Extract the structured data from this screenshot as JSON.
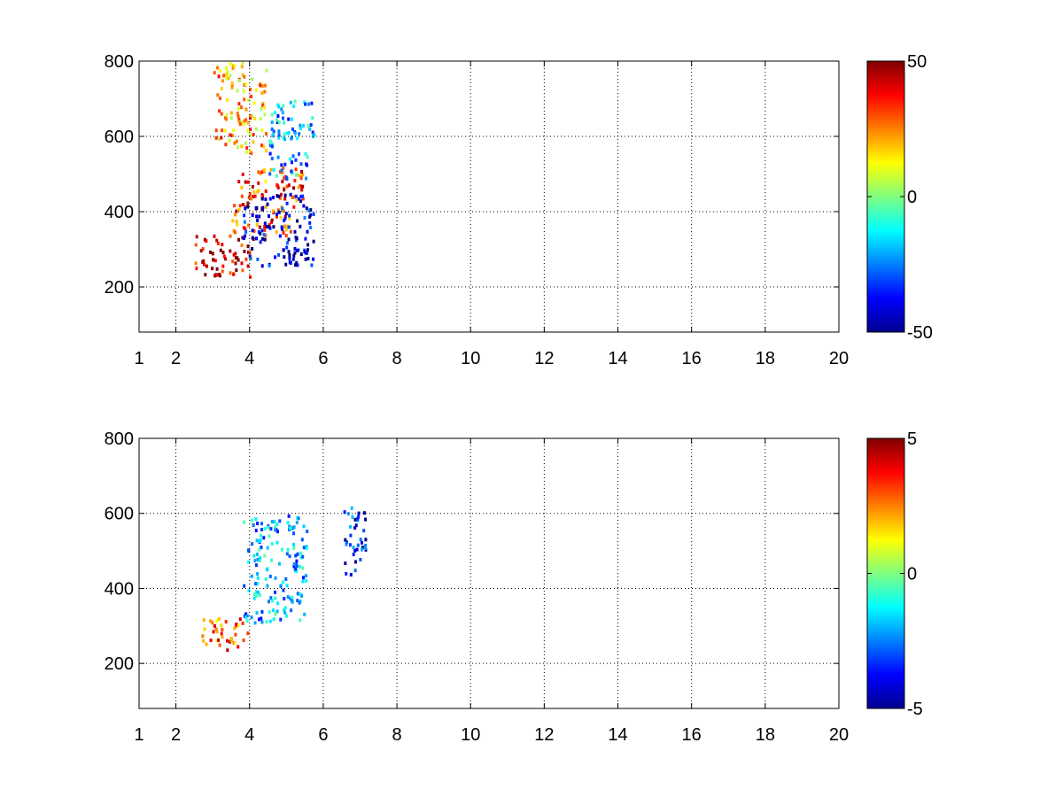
{
  "chart_data": [
    {
      "type": "heatmap",
      "title": "",
      "xlabel": "",
      "ylabel": "",
      "x_ticks": [
        "1",
        "2",
        "4",
        "6",
        "8",
        "10",
        "12",
        "14",
        "16",
        "18",
        "20"
      ],
      "x_tick_values": [
        1,
        2,
        4,
        6,
        8,
        10,
        12,
        14,
        16,
        18,
        20
      ],
      "xlim": [
        1,
        20
      ],
      "y_ticks": [
        "200",
        "400",
        "600",
        "800"
      ],
      "y_tick_values": [
        200,
        400,
        600,
        800
      ],
      "ylim": [
        80,
        800
      ],
      "grid": true,
      "colormap": "jet",
      "colorbar": {
        "min": -50,
        "max": 50,
        "ticks": [
          "50",
          "0",
          "-50"
        ],
        "tick_values": [
          50,
          0,
          -50
        ]
      },
      "features": [
        {
          "x_range": [
            2.5,
            4.2
          ],
          "y_range": [
            220,
            340
          ],
          "value": 42
        },
        {
          "x_range": [
            3.5,
            5.5
          ],
          "y_range": [
            330,
            520
          ],
          "value": 30
        },
        {
          "x_range": [
            3.8,
            5.8
          ],
          "y_range": [
            250,
            450
          ],
          "value": -42
        },
        {
          "x_range": [
            4.5,
            5.8
          ],
          "y_range": [
            480,
            700
          ],
          "value": -20
        },
        {
          "x_range": [
            3.0,
            4.5
          ],
          "y_range": [
            550,
            800
          ],
          "value": 20
        }
      ]
    },
    {
      "type": "heatmap",
      "title": "",
      "xlabel": "",
      "ylabel": "",
      "x_ticks": [
        "1",
        "2",
        "4",
        "6",
        "8",
        "10",
        "12",
        "14",
        "16",
        "18",
        "20"
      ],
      "x_tick_values": [
        1,
        2,
        4,
        6,
        8,
        10,
        12,
        14,
        16,
        18,
        20
      ],
      "xlim": [
        1,
        20
      ],
      "y_ticks": [
        "200",
        "400",
        "600",
        "800"
      ],
      "y_tick_values": [
        200,
        400,
        600,
        800
      ],
      "ylim": [
        80,
        800
      ],
      "grid": true,
      "colormap": "jet",
      "colorbar": {
        "min": -5,
        "max": 5,
        "ticks": [
          "5",
          "0",
          "-5"
        ],
        "tick_values": [
          5,
          0,
          -5
        ]
      },
      "features": [
        {
          "x_range": [
            2.6,
            4.0
          ],
          "y_range": [
            230,
            330
          ],
          "value": 2.8
        },
        {
          "x_range": [
            3.8,
            5.6
          ],
          "y_range": [
            300,
            600
          ],
          "value": -2.0
        },
        {
          "x_range": [
            6.5,
            7.2
          ],
          "y_range": [
            430,
            620
          ],
          "value": -3.5
        }
      ]
    }
  ]
}
